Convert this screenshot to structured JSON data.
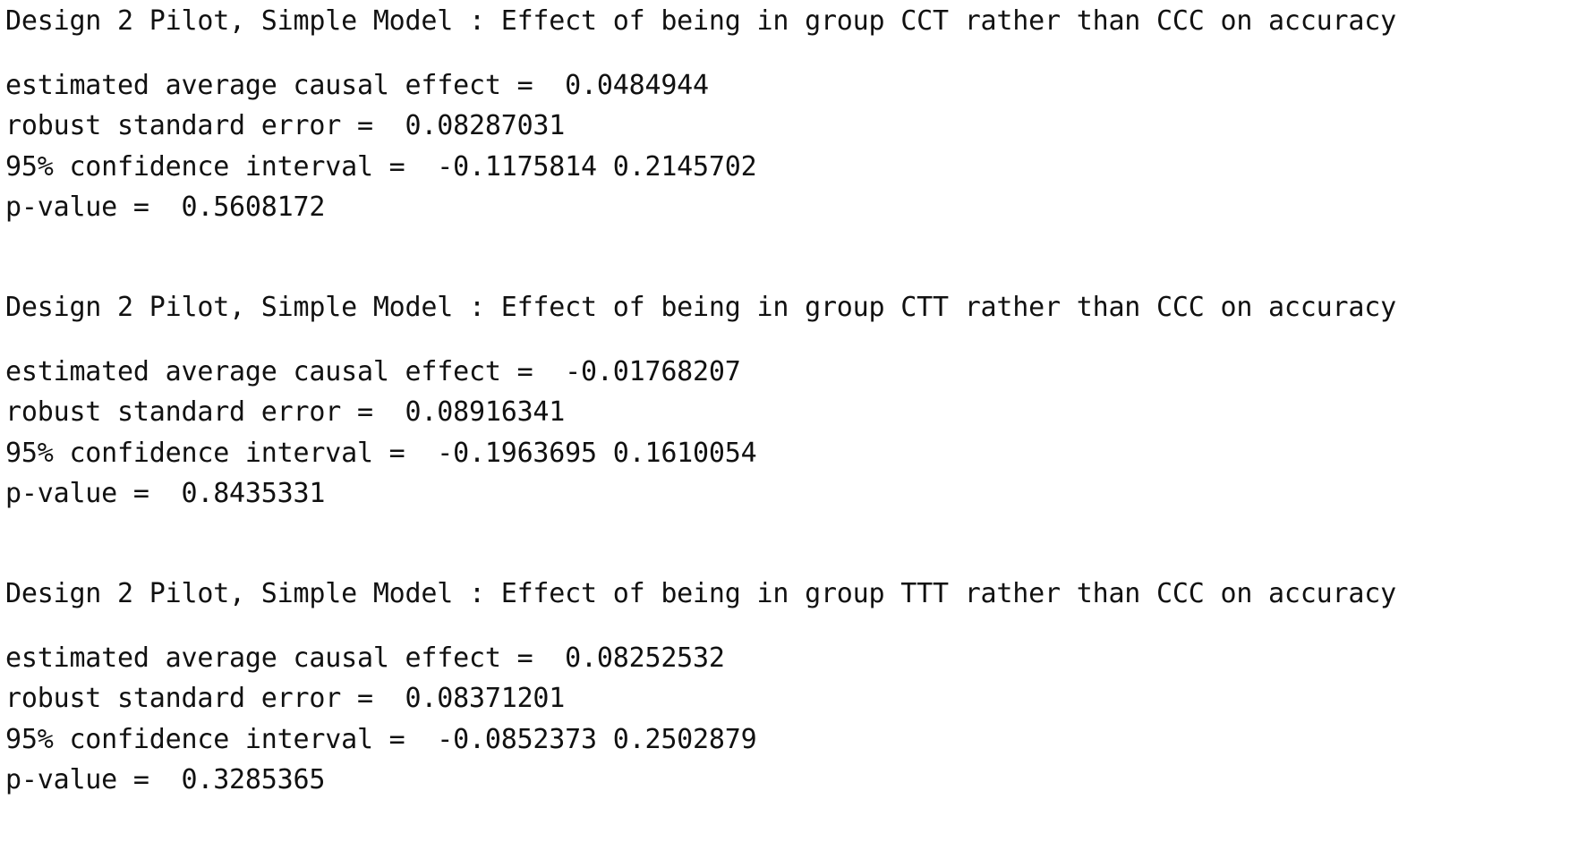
{
  "results": [
    {
      "heading": "Design 2 Pilot, Simple Model : Effect of being in group CCT rather than CCC on accuracy",
      "effect_line": "estimated average causal effect =  0.0484944",
      "se_line": "robust standard error =  0.08287031",
      "ci_line": "95% confidence interval =  -0.1175814 0.2145702",
      "p_line": "p-value =  0.5608172"
    },
    {
      "heading": "Design 2 Pilot, Simple Model : Effect of being in group CTT rather than CCC on accuracy",
      "effect_line": "estimated average causal effect =  -0.01768207",
      "se_line": "robust standard error =  0.08916341",
      "ci_line": "95% confidence interval =  -0.1963695 0.1610054",
      "p_line": "p-value =  0.8435331"
    },
    {
      "heading": "Design 2 Pilot, Simple Model : Effect of being in group TTT rather than CCC on accuracy",
      "effect_line": "estimated average causal effect =  0.08252532",
      "se_line": "robust standard error =  0.08371201",
      "ci_line": "95% confidence interval =  -0.0852373 0.2502879",
      "p_line": "p-value =  0.3285365"
    }
  ]
}
